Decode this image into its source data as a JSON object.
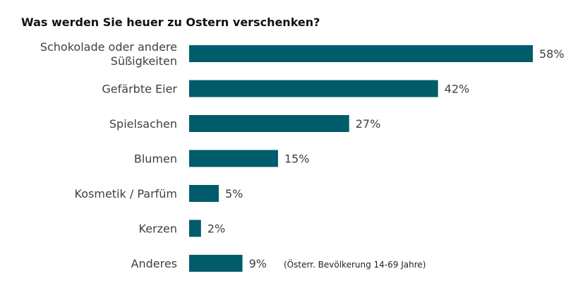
{
  "chart_data": {
    "type": "bar",
    "orientation": "horizontal",
    "title": "Was werden Sie heuer zu Ostern verschenken?",
    "categories": [
      "Schokolade oder andere Süßigkeiten",
      "Gefärbte Eier",
      "Spielsachen",
      "Blumen",
      "Kosmetik / Parfüm",
      "Kerzen",
      "Anderes"
    ],
    "category_lines": [
      [
        "Schokolade oder andere",
        "Süßigkeiten"
      ],
      [
        "Gefärbte Eier"
      ],
      [
        "Spielsachen"
      ],
      [
        "Blumen"
      ],
      [
        "Kosmetik / Parfüm"
      ],
      [
        "Kerzen"
      ],
      [
        "Anderes"
      ]
    ],
    "values": [
      58,
      42,
      27,
      15,
      5,
      2,
      9
    ],
    "value_labels": [
      "58%",
      "42%",
      "27%",
      "15%",
      "5%",
      "2%",
      "9%"
    ],
    "unit": "%",
    "bar_color": "#005b6b",
    "xlim": [
      0,
      58
    ],
    "grid": false,
    "legend": "none",
    "note": "(Österr. Bevölkerung 14-69 Jahre)"
  }
}
